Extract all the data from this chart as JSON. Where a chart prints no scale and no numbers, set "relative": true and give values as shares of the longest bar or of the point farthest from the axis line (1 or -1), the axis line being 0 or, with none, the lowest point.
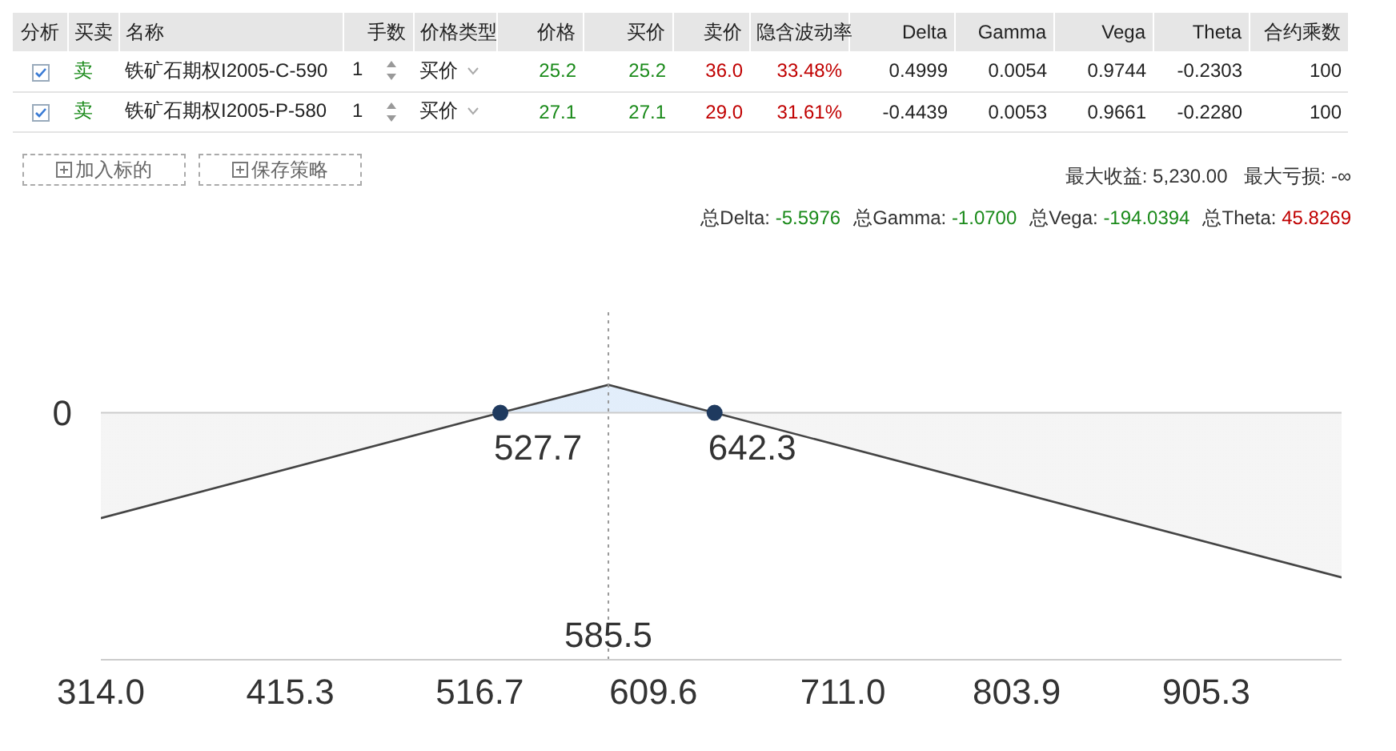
{
  "chart_data": [
    {
      "type": "other",
      "annotations": [
        "分析",
        "买卖",
        "名称",
        "手数",
        "价格类型",
        "价格",
        "买价",
        "卖价",
        "隐含波动率",
        "Delta",
        "Gamma",
        "Vega",
        "Theta",
        "合约乘数",
        "卖",
        "铁矿石期权I2005-C-590",
        "1",
        "买价",
        "25.2",
        "25.2",
        "36.0",
        "33.48%",
        "0.4999",
        "0.0054",
        "0.9744",
        "-0.2303",
        "100",
        "卖",
        "铁矿石期权I2005-P-580",
        "1",
        "买价",
        "27.1",
        "27.1",
        "29.0",
        "31.61%",
        "-0.4439",
        "0.0053",
        "0.9661",
        "-0.2280",
        "100",
        "加入标的",
        "保存策略",
        "最大收益: 5,230.00",
        "最大亏损: -∞",
        "总Delta:",
        "-5.5976",
        "总Gamma:",
        "-1.0700",
        "总Vega:",
        "-194.0394",
        "总Theta:",
        "45.8269"
      ]
    },
    {
      "type": "area",
      "relative": true,
      "x": [
        314,
        527.7,
        585.5,
        642.3,
        977.7
      ],
      "series": [
        {
          "color": "#444444",
          "values": [
            -0.64,
            0,
            0.17,
            0,
            -1
          ]
        }
      ],
      "xlim": [
        314,
        977.7
      ],
      "xticks": [
        {
          "value": 314,
          "label": "314.0"
        },
        415.3,
        516.7,
        609.6,
        {
          "value": 711,
          "label": "711.0"
        },
        803.9,
        905.3
      ],
      "ref_lines": [
        {
          "axis": "y",
          "value": 0,
          "label": "0",
          "color": "#cccccc",
          "line_style": "solid"
        },
        {
          "axis": "x",
          "value": 585.5,
          "label": "585.5",
          "color": "#999999",
          "line_style": "dotted"
        }
      ],
      "annotations": [
        {
          "text": "527.7",
          "x": 527.7,
          "y": 0
        },
        {
          "text": "642.3",
          "x": 642.3,
          "y": 0
        }
      ]
    }
  ]
}
